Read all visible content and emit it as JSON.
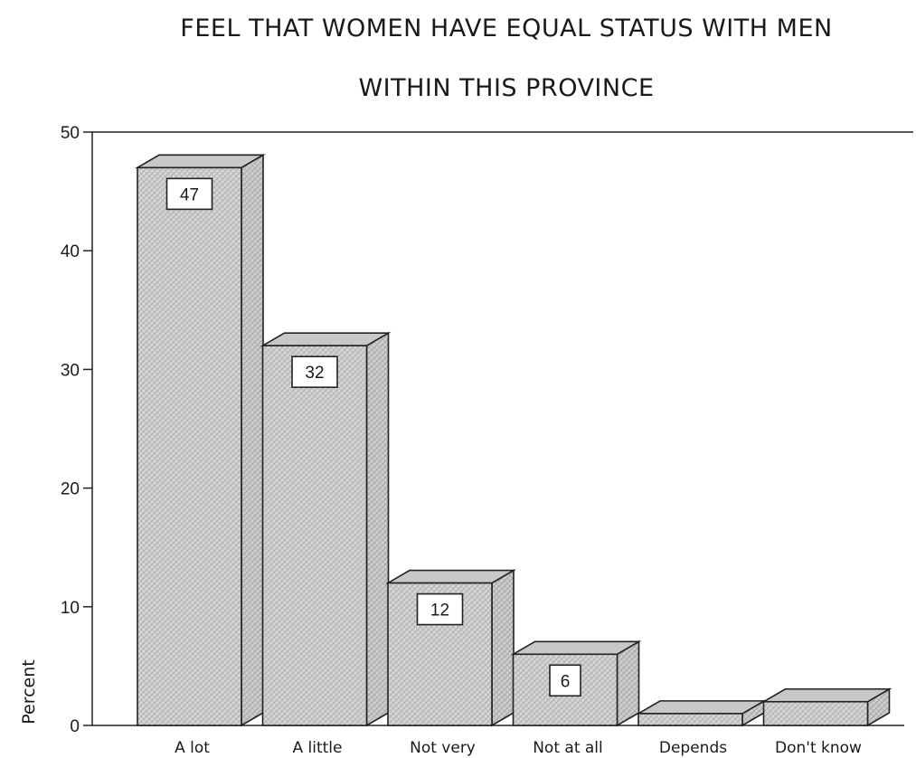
{
  "chart_data": {
    "type": "bar",
    "title_lines": [
      "FEEL THAT WOMEN HAVE EQUAL STATUS WITH MEN",
      "WITHIN THIS PROVINCE"
    ],
    "ylabel": "Percent",
    "xlabel": "",
    "categories": [
      "A lot",
      "A little",
      "Not very",
      "Not at all",
      "Depends",
      "Don't know"
    ],
    "values": [
      47,
      32,
      12,
      6,
      1,
      2
    ],
    "value_labels": [
      "47",
      "32",
      "12",
      "6",
      "",
      ""
    ],
    "ylim": [
      0,
      50
    ],
    "yticks": [
      0,
      10,
      20,
      30,
      40,
      50
    ],
    "grid": false,
    "style": "3d-hatched",
    "colors": {
      "bar_face": "#d4d4d4",
      "bar_side": "#bdbdbd",
      "bar_top": "#c8c8c8",
      "outline": "#222222",
      "label_box": "#ffffff"
    }
  }
}
